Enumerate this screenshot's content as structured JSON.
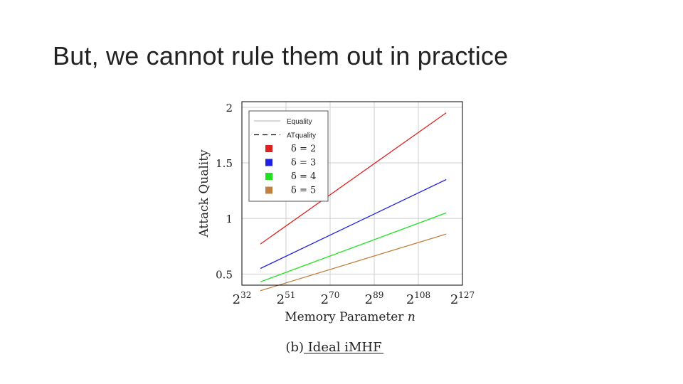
{
  "slide": {
    "title": "But, we cannot rule them out in practice"
  },
  "chart_data": {
    "type": "line",
    "xlabel": "Memory Parameter n",
    "ylabel": "Attack Quality",
    "caption": "(b) Ideal iMHF",
    "x_scale": "log2",
    "x_ticks": [
      {
        "base": "2",
        "exp": "32"
      },
      {
        "base": "2",
        "exp": "51"
      },
      {
        "base": "2",
        "exp": "70"
      },
      {
        "base": "2",
        "exp": "89"
      },
      {
        "base": "2",
        "exp": "108"
      },
      {
        "base": "2",
        "exp": "127"
      }
    ],
    "x_tick_values": [
      32,
      51,
      70,
      89,
      108,
      127
    ],
    "y_ticks": [
      "0.5",
      "1",
      "1.5",
      "2"
    ],
    "y_tick_values": [
      0.5,
      1,
      1.5,
      2
    ],
    "xlim": [
      32,
      127
    ],
    "ylim": [
      0.4,
      2.05
    ],
    "grid": true,
    "legend_position": "top-left",
    "legend": [
      {
        "label": "Equality",
        "style": "thin-line"
      },
      {
        "label": "ATquality",
        "style": "dashed-line"
      },
      {
        "label": "δ = 2",
        "style": "square",
        "color": "#e02020"
      },
      {
        "label": "δ = 3",
        "style": "square",
        "color": "#2020e0"
      },
      {
        "label": "δ = 4",
        "style": "square",
        "color": "#20e020"
      },
      {
        "label": "δ = 5",
        "style": "square",
        "color": "#c08040"
      }
    ],
    "series": [
      {
        "name": "δ = 2",
        "color": "#e02020",
        "x": [
          40,
          120
        ],
        "y": [
          0.77,
          1.95
        ]
      },
      {
        "name": "δ = 3",
        "color": "#2020e0",
        "x": [
          40,
          120
        ],
        "y": [
          0.55,
          1.35
        ]
      },
      {
        "name": "δ = 4",
        "color": "#20e020",
        "x": [
          40,
          120
        ],
        "y": [
          0.43,
          1.05
        ]
      },
      {
        "name": "δ = 5",
        "color": "#c08040",
        "x": [
          40,
          120
        ],
        "y": [
          0.35,
          0.86
        ]
      }
    ]
  }
}
